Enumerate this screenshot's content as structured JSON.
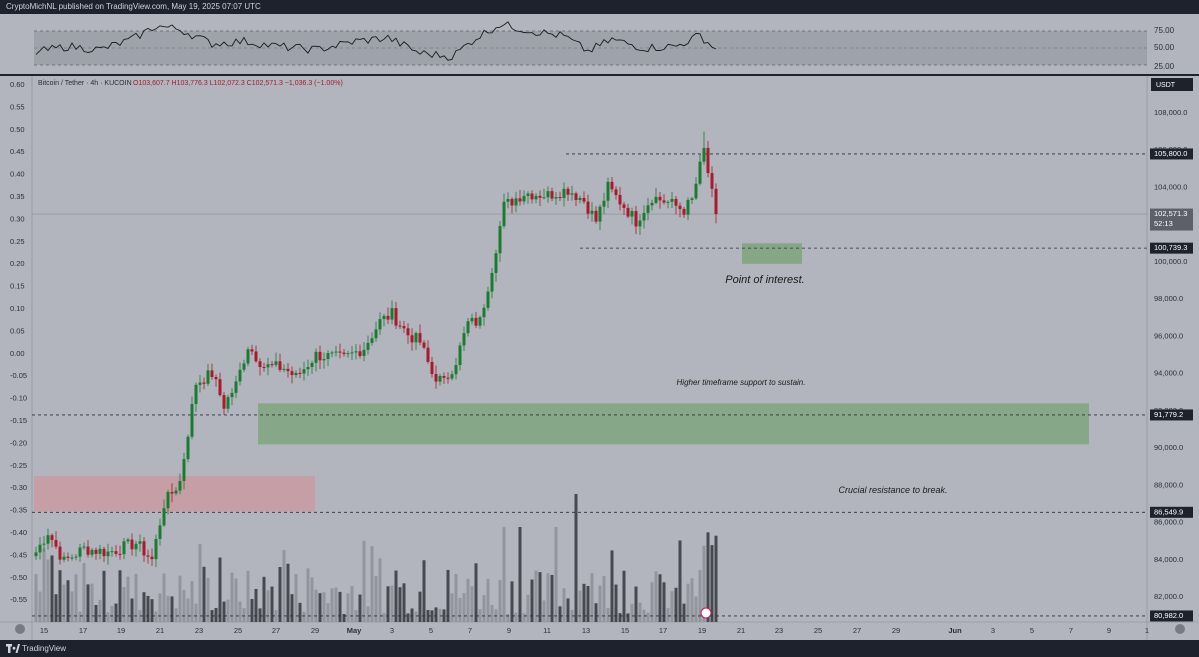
{
  "header": {
    "published": "CryptoMichNL published on TradingView.com, May 19, 2025 07:07 UTC"
  },
  "footer": {
    "brand": "TradingView"
  },
  "legend": {
    "symbol": "Bitcoin / Tether · 4h · KUCOIN",
    "ohlc": "O103,607.7  H103,776.3  L102,072.3  C102,571.3  −1,036.3 (−1.00%)"
  },
  "colors": {
    "bg": "#b2b5be",
    "panel": "#1e222d",
    "up": "#1e7a33",
    "down": "#a31d2b",
    "support_zone": "#7fa580",
    "resistance_zone": "#c99aa1",
    "poi_zone": "#7fa580"
  },
  "chart_data": {
    "type": "candlestick",
    "price_axis": {
      "currency": "USDT",
      "ylim": [
        80600,
        109600
      ],
      "ticks": [
        "108,000.0",
        "106,000.0",
        "104,000.0",
        "102,000.0",
        "100,000.0",
        "98,000.0",
        "96,000.0",
        "94,000.0",
        "92,000.0",
        "90,000.0",
        "88,000.0",
        "86,000.0",
        "84,000.0",
        "82,000.0"
      ]
    },
    "left_axis": {
      "ticks": [
        "0.60",
        "0.55",
        "0.50",
        "0.45",
        "0.40",
        "0.35",
        "0.30",
        "0.25",
        "0.20",
        "0.15",
        "0.10",
        "0.05",
        "0.00",
        "-0.05",
        "-0.10",
        "-0.15",
        "-0.20",
        "-0.25",
        "-0.30",
        "-0.35",
        "-0.40",
        "-0.45",
        "-0.50",
        "-0.55"
      ]
    },
    "time_axis": {
      "labels": [
        "15",
        "17",
        "19",
        "21",
        "23",
        "25",
        "27",
        "29",
        "May",
        "3",
        "5",
        "7",
        "9",
        "11",
        "13",
        "15",
        "17",
        "19",
        "21",
        "23",
        "25",
        "27",
        "29",
        "Jun",
        "3",
        "5",
        "7",
        "9",
        "1"
      ]
    },
    "rsi": {
      "ticks": [
        "75.00",
        "50.00",
        "25.00"
      ],
      "band": [
        30,
        70
      ]
    },
    "price_labels": [
      {
        "text": "105,800.0",
        "value": 105800
      },
      {
        "text": "102,571.3",
        "value": 102571.3,
        "sub": "52:13"
      },
      {
        "text": "100,739.3",
        "value": 100739.3
      },
      {
        "text": "91,779.2",
        "value": 91779.2
      },
      {
        "text": "86,549.9",
        "value": 86549.9
      },
      {
        "text": "80,982.0",
        "value": 80982
      }
    ],
    "levels": [
      105800,
      100739.3,
      91779.2,
      86549.9,
      80982
    ],
    "zones": [
      {
        "name": "support",
        "low": 90200,
        "high": 92400
      },
      {
        "name": "resistance",
        "low": 86600,
        "high": 88500
      },
      {
        "name": "poi",
        "low": 99900,
        "high": 101000
      }
    ],
    "annotations": [
      "Point of interest.",
      "Higher timeframe support to sustain.",
      "Crucial resistance to break."
    ],
    "anchors": [
      [
        0,
        84400
      ],
      [
        3,
        85500
      ],
      [
        7,
        83900
      ],
      [
        12,
        84600
      ],
      [
        18,
        84400
      ],
      [
        25,
        84900
      ],
      [
        29,
        84000
      ],
      [
        32,
        87000
      ],
      [
        36,
        88200
      ],
      [
        40,
        93500
      ],
      [
        44,
        94000
      ],
      [
        47,
        92300
      ],
      [
        50,
        93400
      ],
      [
        53,
        95500
      ],
      [
        57,
        94400
      ],
      [
        62,
        94300
      ],
      [
        65,
        93800
      ],
      [
        70,
        95000
      ],
      [
        77,
        94800
      ],
      [
        82,
        95400
      ],
      [
        86,
        96800
      ],
      [
        89,
        97200
      ],
      [
        93,
        96100
      ],
      [
        96,
        95700
      ],
      [
        99,
        94000
      ],
      [
        102,
        93500
      ],
      [
        105,
        94700
      ],
      [
        108,
        96700
      ],
      [
        111,
        96800
      ],
      [
        114,
        99700
      ],
      [
        117,
        103000
      ],
      [
        122,
        103700
      ],
      [
        128,
        103600
      ],
      [
        133,
        103900
      ],
      [
        137,
        103300
      ],
      [
        140,
        102200
      ],
      [
        143,
        104000
      ],
      [
        147,
        103000
      ],
      [
        150,
        102200
      ],
      [
        154,
        103500
      ],
      [
        158,
        103200
      ],
      [
        162,
        102800
      ],
      [
        164,
        103300
      ],
      [
        167,
        106000
      ],
      [
        169,
        103600
      ],
      [
        170,
        102571.3
      ]
    ],
    "volume_scale": [
      0,
      1
    ],
    "rsi_anchors": [
      [
        0,
        45
      ],
      [
        8,
        52
      ],
      [
        16,
        48
      ],
      [
        24,
        60
      ],
      [
        30,
        76
      ],
      [
        36,
        72
      ],
      [
        44,
        55
      ],
      [
        52,
        58
      ],
      [
        60,
        52
      ],
      [
        70,
        48
      ],
      [
        80,
        58
      ],
      [
        88,
        62
      ],
      [
        96,
        44
      ],
      [
        104,
        40
      ],
      [
        110,
        62
      ],
      [
        116,
        78
      ],
      [
        124,
        70
      ],
      [
        132,
        64
      ],
      [
        138,
        46
      ],
      [
        144,
        60
      ],
      [
        152,
        50
      ],
      [
        160,
        52
      ],
      [
        166,
        65
      ],
      [
        170,
        48
      ]
    ]
  }
}
